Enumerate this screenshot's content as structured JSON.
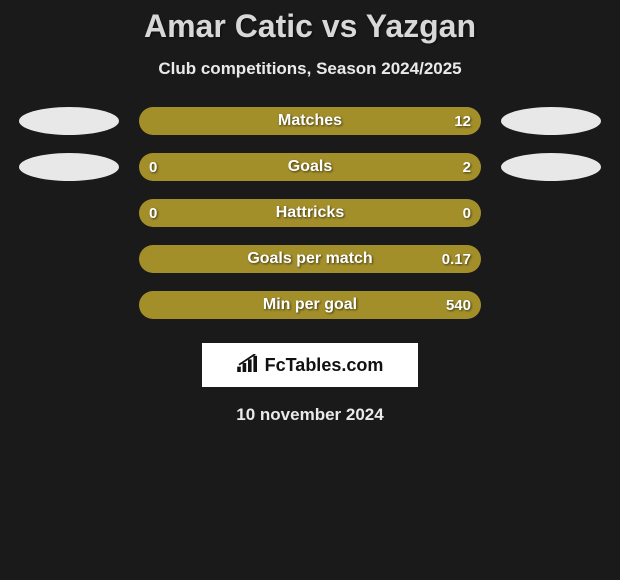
{
  "title": "Amar Catic vs Yazgan",
  "subtitle": "Club competitions, Season 2024/2025",
  "date": "10 november 2024",
  "brand": {
    "name": "FcTables.com"
  },
  "colors": {
    "player1": "#a38f2a",
    "player2": "#a38f2a",
    "ellipse": "#e8e8e8",
    "background": "#1a1a1a"
  },
  "stats": [
    {
      "label": "Matches",
      "left_value": "",
      "right_value": "12",
      "left_pct": 50,
      "right_pct": 50,
      "left_color": "#a38f2a",
      "right_color": "#a38f2a",
      "show_left_ellipse": true,
      "show_right_ellipse": true
    },
    {
      "label": "Goals",
      "left_value": "0",
      "right_value": "2",
      "left_pct": 18,
      "right_pct": 82,
      "left_color": "#a38f2a",
      "right_color": "#a38f2a",
      "show_left_ellipse": true,
      "show_right_ellipse": true
    },
    {
      "label": "Hattricks",
      "left_value": "0",
      "right_value": "0",
      "left_pct": 50,
      "right_pct": 50,
      "left_color": "#a38f2a",
      "right_color": "#a38f2a",
      "show_left_ellipse": false,
      "show_right_ellipse": false
    },
    {
      "label": "Goals per match",
      "left_value": "",
      "right_value": "0.17",
      "left_pct": 50,
      "right_pct": 50,
      "left_color": "#a38f2a",
      "right_color": "#a38f2a",
      "show_left_ellipse": false,
      "show_right_ellipse": false
    },
    {
      "label": "Min per goal",
      "left_value": "",
      "right_value": "540",
      "left_pct": 50,
      "right_pct": 50,
      "left_color": "#a38f2a",
      "right_color": "#a38f2a",
      "show_left_ellipse": false,
      "show_right_ellipse": false
    }
  ]
}
